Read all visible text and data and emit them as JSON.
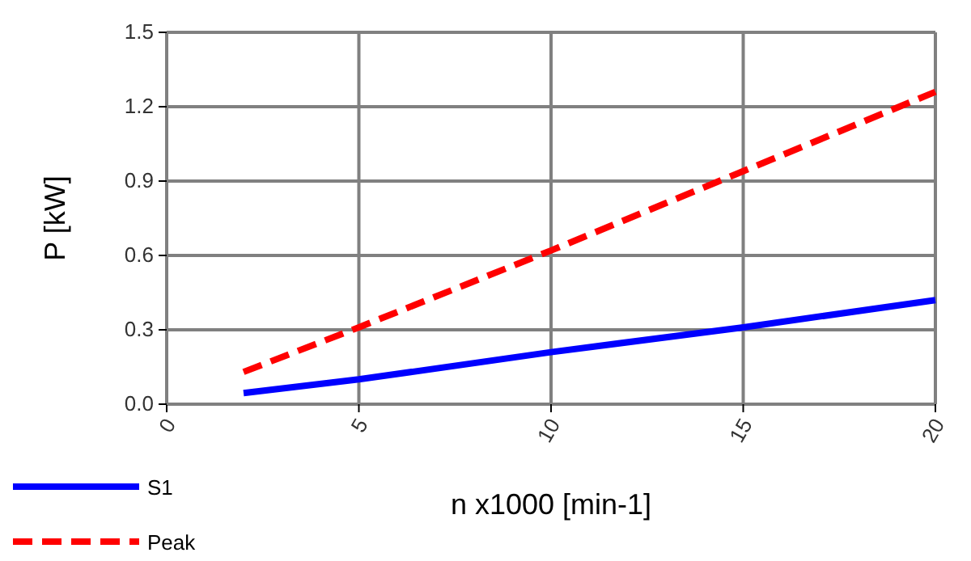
{
  "chart_data": {
    "type": "line",
    "xlabel": "n x1000 [min-1]",
    "ylabel": "P [kW]",
    "xlim": [
      0,
      20
    ],
    "xticks": [
      0,
      5,
      10,
      15,
      20
    ],
    "ylim": [
      0,
      1.5
    ],
    "yticks": [
      {
        "value": 0,
        "label": "0.0"
      },
      0.3,
      0.6,
      0.9,
      1.2,
      1.5
    ],
    "grid": true,
    "legend": "bottom left",
    "marker": "none",
    "series": [
      {
        "name": "S1",
        "color": "#0000ff",
        "line_style": "solid",
        "x": [
          2,
          5,
          10,
          15,
          20
        ],
        "values": [
          0.045,
          0.1,
          0.21,
          0.31,
          0.42
        ]
      },
      {
        "name": "Peak",
        "color": "#ff0000",
        "line_style": "dashed",
        "x": [
          2,
          5,
          10,
          15,
          20
        ],
        "values": [
          0.13,
          0.31,
          0.62,
          0.94,
          1.26
        ]
      }
    ]
  }
}
